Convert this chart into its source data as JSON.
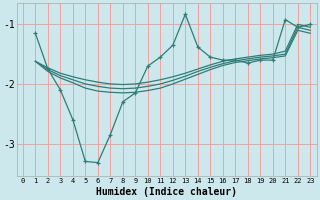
{
  "xlabel": "Humidex (Indice chaleur)",
  "bg_color": "#cce8ec",
  "grid_color": "#f5a0a0",
  "line_color": "#2d7d78",
  "xlim": [
    -0.5,
    23.5
  ],
  "ylim": [
    -3.55,
    -0.65
  ],
  "yticks": [
    -3,
    -2,
    -1
  ],
  "xticks": [
    0,
    1,
    2,
    3,
    4,
    5,
    6,
    7,
    8,
    9,
    10,
    11,
    12,
    13,
    14,
    15,
    16,
    17,
    18,
    19,
    20,
    21,
    22,
    23
  ],
  "line1_x": [
    1,
    2,
    3,
    4,
    5,
    6,
    7,
    8,
    9,
    10,
    11,
    12,
    13,
    14,
    15,
    16,
    17,
    18,
    19,
    20,
    21,
    22,
    23
  ],
  "line1_y": [
    -1.15,
    -1.75,
    -2.1,
    -2.6,
    -3.3,
    -3.32,
    -2.85,
    -2.3,
    -2.15,
    -1.7,
    -1.55,
    -1.35,
    -0.83,
    -1.38,
    -1.55,
    -1.6,
    -1.6,
    -1.65,
    -1.6,
    -1.6,
    -0.92,
    -1.05,
    -1.0
  ],
  "line2_x": [
    1,
    2,
    3,
    4,
    5,
    6,
    7,
    8,
    9,
    10,
    11,
    12,
    13,
    14,
    15,
    16,
    17,
    18,
    19,
    20,
    21,
    22,
    23
  ],
  "line2_y": [
    -1.62,
    -1.73,
    -1.82,
    -1.88,
    -1.93,
    -1.97,
    -2.0,
    -2.01,
    -2.0,
    -1.97,
    -1.93,
    -1.88,
    -1.82,
    -1.75,
    -1.68,
    -1.62,
    -1.58,
    -1.55,
    -1.52,
    -1.5,
    -1.45,
    -1.0,
    -1.05
  ],
  "line3_x": [
    1,
    2,
    3,
    4,
    5,
    6,
    7,
    8,
    9,
    10,
    11,
    12,
    13,
    14,
    15,
    16,
    17,
    18,
    19,
    20,
    21,
    22,
    23
  ],
  "line3_y": [
    -1.62,
    -1.76,
    -1.86,
    -1.93,
    -2.0,
    -2.04,
    -2.07,
    -2.08,
    -2.07,
    -2.04,
    -2.0,
    -1.94,
    -1.87,
    -1.79,
    -1.72,
    -1.66,
    -1.61,
    -1.58,
    -1.55,
    -1.53,
    -1.5,
    -1.05,
    -1.1
  ],
  "line4_x": [
    1,
    2,
    3,
    4,
    5,
    6,
    7,
    8,
    9,
    10,
    11,
    12,
    13,
    14,
    15,
    16,
    17,
    18,
    19,
    20,
    21,
    22,
    23
  ],
  "line4_y": [
    -1.62,
    -1.79,
    -1.9,
    -1.98,
    -2.07,
    -2.12,
    -2.14,
    -2.15,
    -2.14,
    -2.11,
    -2.07,
    -2.0,
    -1.92,
    -1.84,
    -1.76,
    -1.69,
    -1.64,
    -1.61,
    -1.58,
    -1.56,
    -1.53,
    -1.1,
    -1.15
  ]
}
